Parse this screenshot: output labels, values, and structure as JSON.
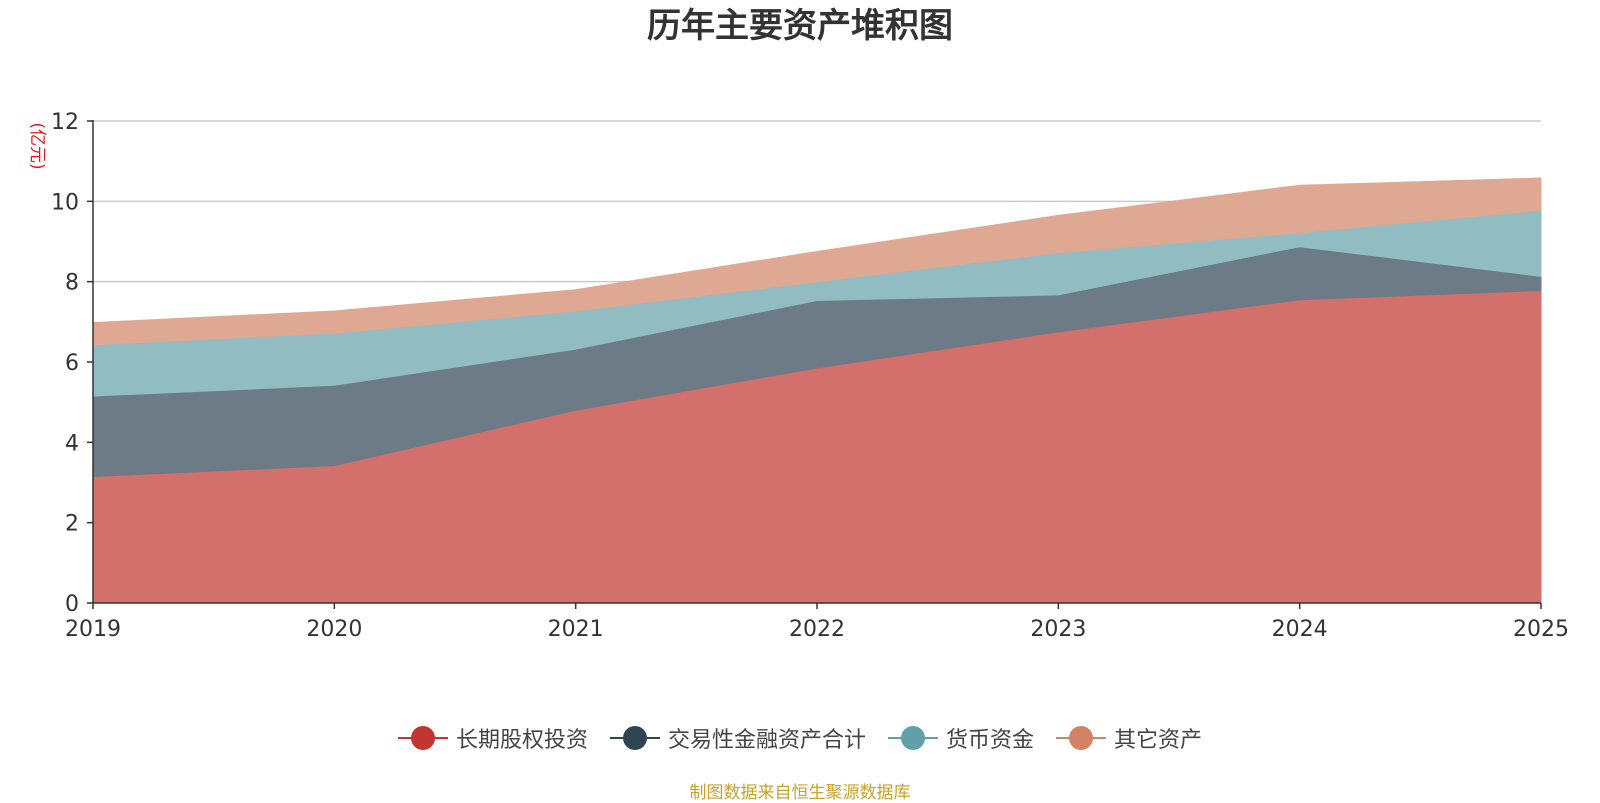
{
  "chart_data": {
    "type": "area",
    "stacked": true,
    "title": "历年主要资产堆积图",
    "ylabel": "(亿元)",
    "xlabel": "",
    "ylim": [
      0,
      12
    ],
    "yticks": [
      "0",
      "2",
      "4",
      "6",
      "8",
      "10",
      "12"
    ],
    "categories": [
      "2019",
      "2020",
      "2021",
      "2022",
      "2023",
      "2024",
      "2025"
    ],
    "series": [
      {
        "name": "长期股权投资",
        "color": "#c23531",
        "fill": "#d3706b",
        "values": [
          3.15,
          3.42,
          4.8,
          5.85,
          6.75,
          7.55,
          7.78
        ]
      },
      {
        "name": "交易性金融资产合计",
        "color": "#2f4554",
        "fill": "#6d7b86",
        "values": [
          2.0,
          2.0,
          1.52,
          1.68,
          0.92,
          1.32,
          0.35
        ]
      },
      {
        "name": "货币资金",
        "color": "#61a0a8",
        "fill": "#91bcc2",
        "values": [
          1.28,
          1.3,
          0.95,
          0.47,
          1.05,
          0.35,
          1.65
        ]
      },
      {
        "name": "其它资产",
        "color": "#d48265",
        "fill": "#dfa892",
        "values": [
          0.55,
          0.55,
          0.53,
          0.75,
          0.93,
          1.18,
          0.8
        ]
      }
    ],
    "legend_position": "bottom-center",
    "grid": true
  },
  "source_note": "制图数据来自恒生聚源数据库"
}
